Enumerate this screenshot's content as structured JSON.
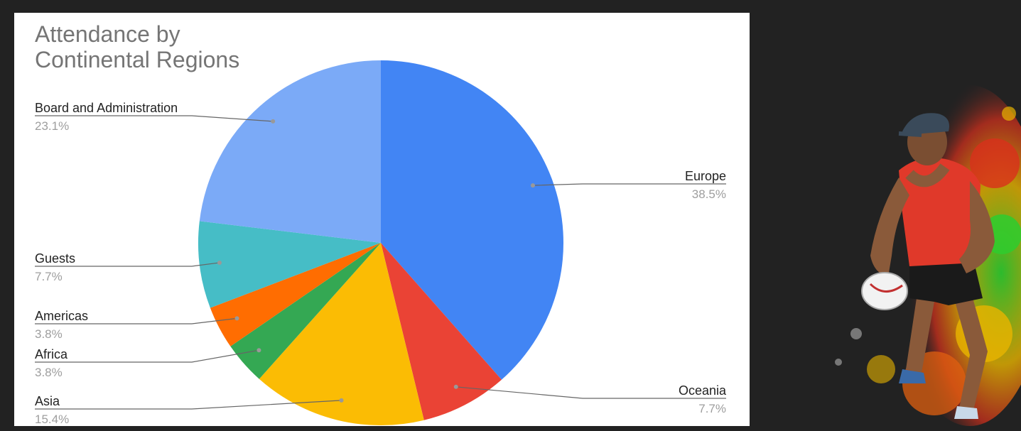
{
  "chart_data": {
    "type": "pie",
    "title": "Attendance by\nContinental Regions",
    "slices": [
      {
        "label": "Europe",
        "value": 38.5,
        "pct_label": "38.5%",
        "color": "#4285f4"
      },
      {
        "label": "Oceania",
        "value": 7.7,
        "pct_label": "7.7%",
        "color": "#ea4335"
      },
      {
        "label": "Asia",
        "value": 15.4,
        "pct_label": "15.4%",
        "color": "#fbbc04"
      },
      {
        "label": "Africa",
        "value": 3.8,
        "pct_label": "3.8%",
        "color": "#34a853"
      },
      {
        "label": "Americas",
        "value": 3.8,
        "pct_label": "3.8%",
        "color": "#ff6d01"
      },
      {
        "label": "Guests",
        "value": 7.7,
        "pct_label": "7.7%",
        "color": "#46bdc6"
      },
      {
        "label": "Board and Administration",
        "value": 23.1,
        "pct_label": "23.1%",
        "color": "#7baaf7"
      }
    ]
  },
  "colors": {
    "background": "#222222",
    "card": "#ffffff",
    "title": "#757575",
    "leader": "#666666"
  },
  "photo": {
    "icon": "rugby-player-image"
  }
}
